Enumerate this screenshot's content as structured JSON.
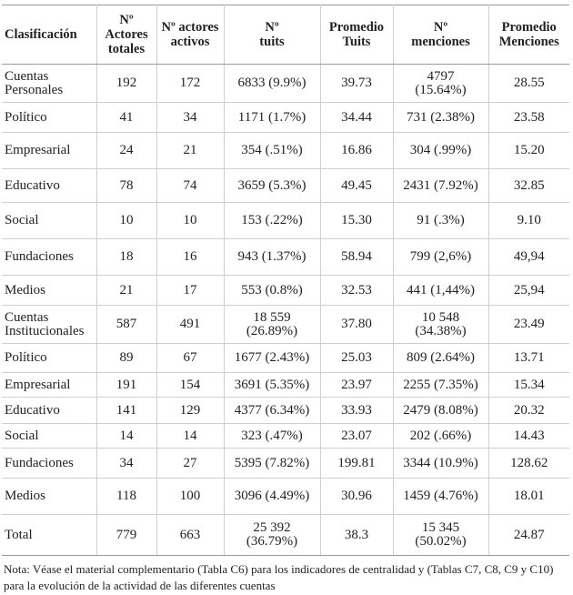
{
  "table": {
    "header": [
      "Clasificación",
      "Nº\nActores\ntotales",
      "Nº actores\nactivos",
      "Nº\ntuits",
      "Promedio\nTuits",
      "Nº\nmenciones",
      "Promedio\nMenciones"
    ],
    "rows": [
      [
        "Cuentas\nPersonales",
        "192",
        "172",
        "6833 (9.9%)",
        "39.73",
        "4797\n(15.64%)",
        "28.55"
      ],
      [
        "Político",
        "41",
        "34",
        "1171 (1.7%)",
        "34.44",
        "731 (2.38%)",
        "23.58"
      ],
      [
        "Empresarial",
        "24",
        "21",
        "354 (.51%)",
        "16.86",
        "304 (.99%)",
        "15.20"
      ],
      [
        "Educativo",
        "78",
        "74",
        "3659 (5.3%)",
        "49.45",
        "2431 (7.92%)",
        "32.85"
      ],
      [
        "Social",
        "10",
        "10",
        "153 (.22%)",
        "15.30",
        "91 (.3%)",
        "9.10"
      ],
      [
        "Fundaciones",
        "18",
        "16",
        "943 (1.37%)",
        "58.94",
        "799 (2,6%)",
        "49,94"
      ],
      [
        "Medios",
        "21",
        "17",
        "553 (0.8%)",
        "32.53",
        "441 (1,44%)",
        "25,94"
      ],
      [
        "Cuentas\nInstitucionales",
        "587",
        "491",
        "18 559\n(26.89%)",
        "37.80",
        "10 548\n(34.38%)",
        "23.49"
      ],
      [
        "Político",
        "89",
        "67",
        "1677 (2.43%)",
        "25.03",
        "809 (2.64%)",
        "13.71"
      ],
      [
        "Empresarial",
        "191",
        "154",
        "3691 (5.35%)",
        "23.97",
        "2255 (7.35%)",
        "15.34"
      ],
      [
        "Educativo",
        "141",
        "129",
        "4377 (6.34%)",
        "33.93",
        "2479 (8.08%)",
        "20.32"
      ],
      [
        "Social",
        "14",
        "14",
        "323 (.47%)",
        "23.07",
        "202 (.66%)",
        "14.43"
      ],
      [
        "Fundaciones",
        "34",
        "27",
        "5395 (7.82%)",
        "199.81",
        "3344 (10.9%)",
        "128.62"
      ],
      [
        "Medios",
        "118",
        "100",
        "3096 (4.49%)",
        "30.96",
        "1459 (4.76%)",
        "18.01"
      ],
      [
        "Total",
        "779",
        "663",
        "25 392\n(36.79%)",
        "38.3",
        "15 345\n(50.02%)",
        "24.87"
      ]
    ]
  },
  "note": "Nota: Véase el material complementario (Tabla C6) para los indicadores de centralidad y (Tablas C7, C8, C9 y C10) para la evolución de la actividad de las diferentes cuentas"
}
